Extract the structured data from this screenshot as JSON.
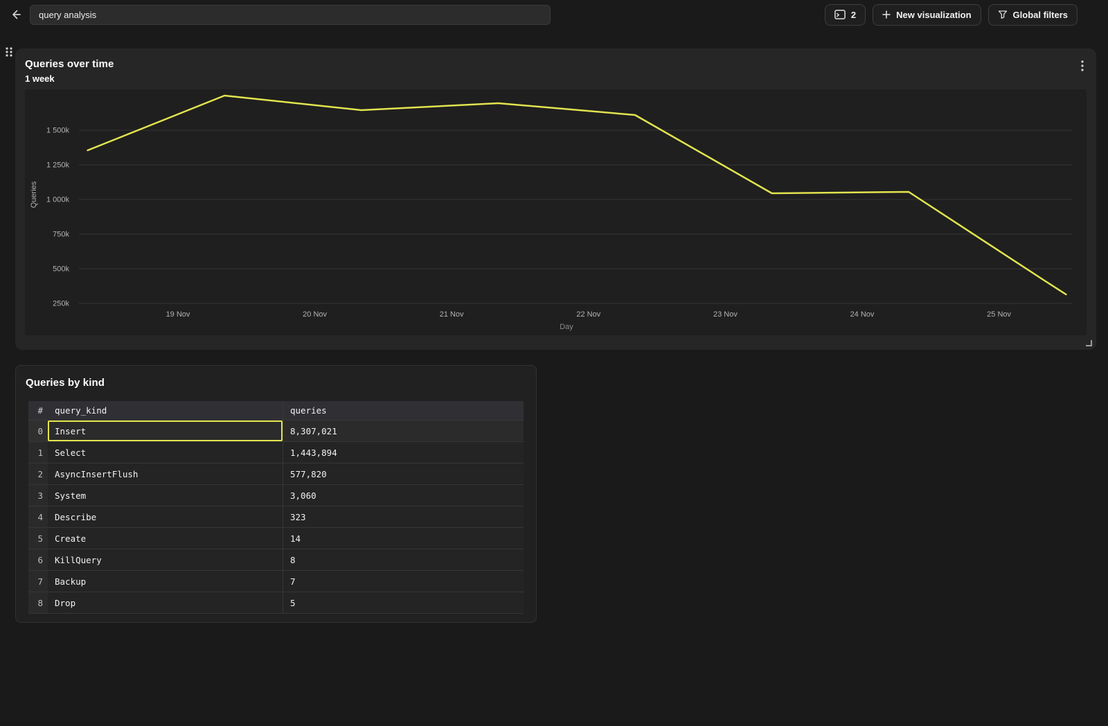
{
  "topbar": {
    "title_input": {
      "value": "query analysis"
    },
    "console_button": {
      "count": "2"
    },
    "new_visualization_button": {
      "label": "New visualization"
    },
    "global_filters_button": {
      "label": "Global filters"
    }
  },
  "chart_panel": {
    "title": "Queries over time",
    "subtitle": "1 week"
  },
  "chart_data": {
    "type": "line",
    "title": "Queries over time",
    "subtitle": "1 week",
    "xlabel": "Day",
    "ylabel": "Queries",
    "legend": "none",
    "grid": "horizontal",
    "series_color": "#e2e44f",
    "x_tick_labels": [
      "19 Nov",
      "20 Nov",
      "21 Nov",
      "22 Nov",
      "23 Nov",
      "24 Nov",
      "25 Nov"
    ],
    "x_tick_days": [
      19,
      20,
      21,
      22,
      23,
      24,
      25
    ],
    "y_tick_labels": [
      "250k",
      "500k",
      "750k",
      "1 000k",
      "1 250k",
      "1 500k"
    ],
    "y_tick_values": [
      250000,
      500000,
      750000,
      1000000,
      1250000,
      1500000
    ],
    "ylim": [
      150000,
      1800000
    ],
    "xlim_days": [
      17.9,
      25.6
    ],
    "points": {
      "x_days": [
        18.34,
        19.34,
        20.34,
        21.34,
        22.34,
        23.34,
        24.34,
        25.34,
        25.49
      ],
      "queries": [
        1355000,
        1750000,
        1645000,
        1695000,
        1610000,
        1045000,
        1055000,
        410000,
        315000
      ]
    }
  },
  "table_panel": {
    "title": "Queries by kind",
    "columns": [
      "#",
      "query_kind",
      "queries"
    ],
    "rows": [
      {
        "index": "0",
        "query_kind": "Insert",
        "queries": "8,307,021"
      },
      {
        "index": "1",
        "query_kind": "Select",
        "queries": "1,443,894"
      },
      {
        "index": "2",
        "query_kind": "AsyncInsertFlush",
        "queries": "577,820"
      },
      {
        "index": "3",
        "query_kind": "System",
        "queries": "3,060"
      },
      {
        "index": "4",
        "query_kind": "Describe",
        "queries": "323"
      },
      {
        "index": "5",
        "query_kind": "Create",
        "queries": "14"
      },
      {
        "index": "6",
        "query_kind": "KillQuery",
        "queries": "8"
      },
      {
        "index": "7",
        "query_kind": "Backup",
        "queries": "7"
      },
      {
        "index": "8",
        "query_kind": "Drop",
        "queries": "5"
      }
    ],
    "selected": {
      "row_index": 0,
      "column": "query_kind"
    }
  },
  "colors": {
    "accent": "#e2e44f",
    "selected_cell_border": "#e4e44e",
    "panel_background": "#262626",
    "page_background": "#1a1a1a"
  },
  "icons": {
    "back": "arrow-left-icon",
    "console_count": "console-window-icon",
    "new_visualization": "plus-icon",
    "global_filters": "funnel-icon",
    "panel_drag": "drag-handle-icon",
    "panel_menu": "kebab-menu-icon",
    "panel_resize": "resize-corner-icon"
  }
}
